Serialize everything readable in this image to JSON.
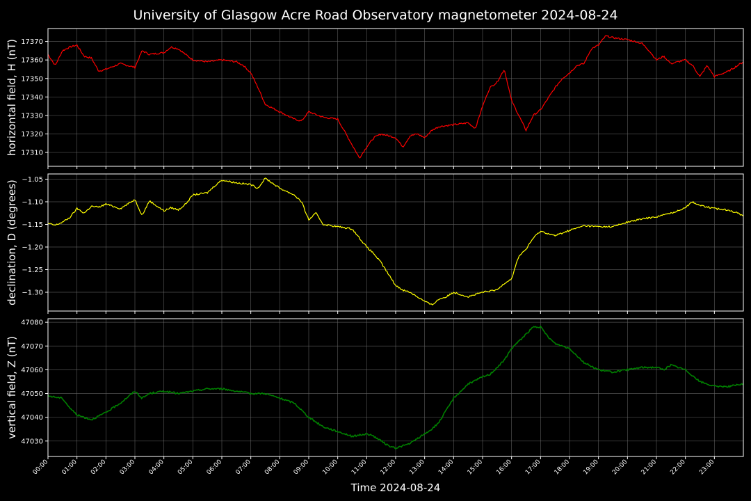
{
  "chart_data": {
    "type": "line",
    "title": "University of Glasgow Acre Road Observatory magnetometer 2024-08-24",
    "xlabel": "Time 2024-08-24",
    "x_ticks": [
      "00:00",
      "01:00",
      "02:00",
      "03:00",
      "04:00",
      "05:00",
      "06:00",
      "07:00",
      "08:00",
      "09:00",
      "10:00",
      "11:00",
      "12:00",
      "13:00",
      "14:00",
      "15:00",
      "16:00",
      "17:00",
      "18:00",
      "19:00",
      "20:00",
      "21:00",
      "22:00",
      "23:00"
    ],
    "xlim": [
      "00:00",
      "24:00"
    ],
    "grid": true,
    "panels": [
      {
        "name": "horizontal",
        "ylabel": "horizontal field, H (nT)",
        "color": "#ff0000",
        "ylim": [
          17302.5,
          17377
        ],
        "y_ticks": [
          17310,
          17320,
          17330,
          17340,
          17350,
          17360,
          17370
        ],
        "tick_labels": [
          "17310",
          "17320",
          "17330",
          "17340",
          "17350",
          "17360",
          "17370"
        ],
        "x": [
          "00:00",
          "00:15",
          "00:30",
          "00:45",
          "01:00",
          "01:15",
          "01:30",
          "01:45",
          "02:00",
          "02:30",
          "03:00",
          "03:15",
          "03:30",
          "04:00",
          "04:15",
          "04:30",
          "05:00",
          "05:30",
          "06:00",
          "06:30",
          "06:45",
          "07:00",
          "07:15",
          "07:30",
          "07:45",
          "08:00",
          "08:30",
          "08:45",
          "09:00",
          "09:30",
          "10:00",
          "10:15",
          "10:30",
          "10:45",
          "11:00",
          "11:15",
          "11:30",
          "12:00",
          "12:15",
          "12:30",
          "12:45",
          "13:00",
          "13:15",
          "13:30",
          "14:00",
          "14:30",
          "14:45",
          "15:00",
          "15:15",
          "15:30",
          "15:45",
          "16:00",
          "16:15",
          "16:30",
          "16:45",
          "17:00",
          "17:30",
          "17:45",
          "18:00",
          "18:15",
          "18:30",
          "18:45",
          "19:00",
          "19:15",
          "19:30",
          "20:00",
          "20:30",
          "20:45",
          "21:00",
          "21:15",
          "21:30",
          "22:00",
          "22:15",
          "22:30",
          "22:45",
          "23:00",
          "23:30",
          "24:00"
        ],
        "y": [
          17363,
          17357,
          17365,
          17367,
          17368,
          17362,
          17361,
          17354,
          17355,
          17358,
          17356,
          17365,
          17363,
          17364,
          17367,
          17366,
          17360,
          17359,
          17360,
          17359,
          17357,
          17353,
          17345,
          17336,
          17334,
          17332,
          17328,
          17327,
          17332,
          17329,
          17328,
          17321,
          17314,
          17307,
          17313,
          17318,
          17320,
          17318,
          17313,
          17319,
          17320,
          17318,
          17322,
          17324,
          17325,
          17326,
          17323,
          17335,
          17345,
          17348,
          17355,
          17338,
          17330,
          17322,
          17330,
          17333,
          17345,
          17350,
          17353,
          17357,
          17358,
          17366,
          17368,
          17373,
          17372,
          17371,
          17369,
          17365,
          17360,
          17362,
          17358,
          17360,
          17357,
          17351,
          17357,
          17351,
          17354,
          17359
        ]
      },
      {
        "name": "declination",
        "ylabel": "declination, D (degrees)",
        "color": "#ffff00",
        "ylim": [
          -1.3415,
          -1.0385
        ],
        "y_ticks": [
          -1.3,
          -1.25,
          -1.2,
          -1.15,
          -1.1,
          -1.05
        ],
        "tick_labels": [
          "−1.30",
          "−1.25",
          "−1.20",
          "−1.15",
          "−1.10",
          "−1.05"
        ],
        "x": [
          "00:00",
          "00:15",
          "00:30",
          "00:45",
          "01:00",
          "01:15",
          "01:30",
          "01:45",
          "02:00",
          "02:30",
          "03:00",
          "03:15",
          "03:30",
          "04:00",
          "04:15",
          "04:30",
          "04:45",
          "05:00",
          "05:30",
          "05:45",
          "06:00",
          "06:30",
          "07:00",
          "07:15",
          "07:30",
          "08:00",
          "08:30",
          "08:45",
          "09:00",
          "09:15",
          "09:30",
          "10:00",
          "10:30",
          "10:45",
          "11:00",
          "11:15",
          "11:30",
          "11:45",
          "12:00",
          "12:15",
          "12:30",
          "12:45",
          "13:00",
          "13:15",
          "13:30",
          "13:45",
          "14:00",
          "14:30",
          "15:00",
          "15:30",
          "15:45",
          "16:00",
          "16:15",
          "16:30",
          "16:45",
          "17:00",
          "17:30",
          "18:00",
          "18:30",
          "19:00",
          "19:30",
          "20:00",
          "20:30",
          "21:00",
          "21:30",
          "21:45",
          "22:00",
          "22:15",
          "22:30",
          "23:00",
          "23:30",
          "24:00"
        ],
        "y": [
          -1.148,
          -1.152,
          -1.145,
          -1.135,
          -1.115,
          -1.125,
          -1.11,
          -1.112,
          -1.105,
          -1.115,
          -1.095,
          -1.13,
          -1.098,
          -1.12,
          -1.113,
          -1.118,
          -1.105,
          -1.085,
          -1.08,
          -1.065,
          -1.052,
          -1.058,
          -1.062,
          -1.07,
          -1.048,
          -1.07,
          -1.085,
          -1.1,
          -1.14,
          -1.125,
          -1.15,
          -1.155,
          -1.16,
          -1.18,
          -1.2,
          -1.215,
          -1.235,
          -1.26,
          -1.285,
          -1.295,
          -1.3,
          -1.31,
          -1.32,
          -1.328,
          -1.315,
          -1.31,
          -1.3,
          -1.31,
          -1.3,
          -1.295,
          -1.28,
          -1.27,
          -1.22,
          -1.205,
          -1.18,
          -1.165,
          -1.175,
          -1.163,
          -1.153,
          -1.155,
          -1.155,
          -1.145,
          -1.138,
          -1.133,
          -1.125,
          -1.12,
          -1.112,
          -1.1,
          -1.108,
          -1.115,
          -1.118,
          -1.13
        ]
      },
      {
        "name": "vertical",
        "ylabel": "vertical field, Z (nT)",
        "color": "#008000",
        "ylim": [
          47023.5,
          47081.5
        ],
        "y_ticks": [
          47030,
          47040,
          47050,
          47060,
          47070,
          47080
        ],
        "tick_labels": [
          "47030",
          "47040",
          "47050",
          "47060",
          "47070",
          "47080"
        ],
        "x": [
          "00:00",
          "00:30",
          "00:45",
          "01:00",
          "01:30",
          "02:00",
          "02:30",
          "03:00",
          "03:15",
          "03:30",
          "04:00",
          "04:30",
          "05:00",
          "05:30",
          "06:00",
          "06:30",
          "07:00",
          "07:30",
          "08:00",
          "08:30",
          "09:00",
          "09:15",
          "09:30",
          "10:00",
          "10:30",
          "11:00",
          "11:15",
          "11:30",
          "11:45",
          "12:00",
          "12:30",
          "13:00",
          "13:15",
          "13:30",
          "13:45",
          "14:00",
          "14:30",
          "15:00",
          "15:15",
          "15:30",
          "15:45",
          "16:00",
          "16:30",
          "16:45",
          "17:00",
          "17:15",
          "17:30",
          "18:00",
          "18:30",
          "19:00",
          "19:30",
          "20:00",
          "20:30",
          "21:00",
          "21:15",
          "21:30",
          "22:00",
          "22:30",
          "23:00",
          "23:30",
          "24:00"
        ],
        "y": [
          47049,
          47048,
          47044,
          47041,
          47039,
          47042,
          47046,
          47051,
          47048,
          47050,
          47051,
          47050,
          47051,
          47052,
          47052,
          47051,
          47050,
          47050,
          47048,
          47046,
          47040,
          47038,
          47036,
          47034,
          47032,
          47033,
          47032,
          47030,
          47028,
          47027,
          47029,
          47033,
          47035,
          47038,
          47043,
          47048,
          47054,
          47057,
          47058,
          47061,
          47064,
          47069,
          47075,
          47078,
          47078,
          47074,
          47071,
          47069,
          47063,
          47060,
          47059,
          47060,
          47061,
          47061,
          47060,
          47062,
          47060,
          47055,
          47053,
          47053,
          47054
        ]
      }
    ]
  }
}
